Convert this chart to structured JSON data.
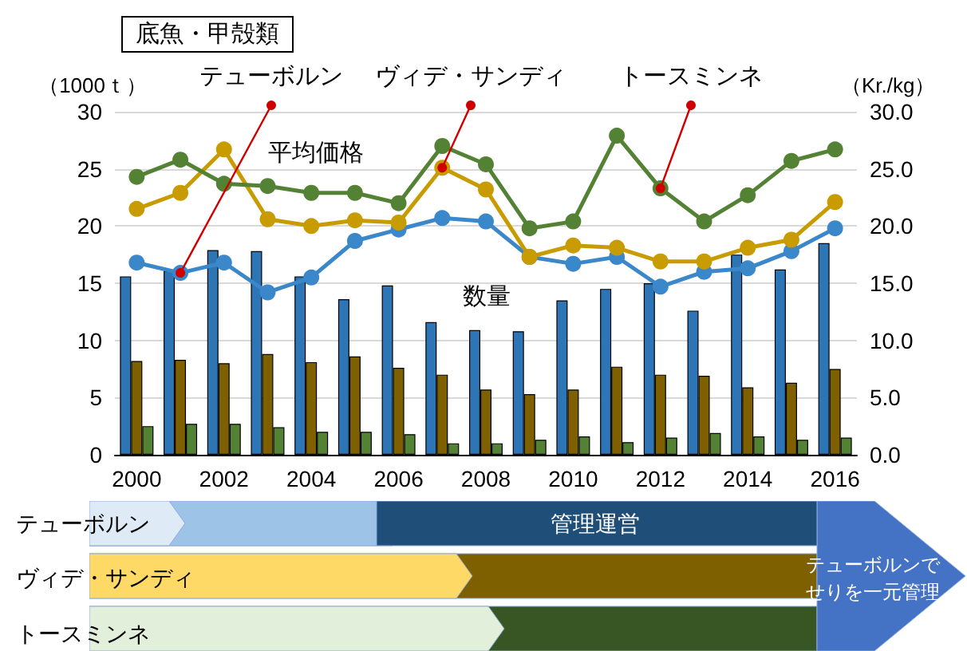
{
  "chart_data": {
    "type": "bar",
    "title": "底魚・甲殻類",
    "ylabel": "（1000ｔ）",
    "y2label": "（Kr./kg）",
    "x": [
      2000,
      2001,
      2002,
      2003,
      2004,
      2005,
      2006,
      2007,
      2008,
      2009,
      2010,
      2011,
      2012,
      2013,
      2014,
      2015,
      2016
    ],
    "xlim": [
      1999.5,
      2016.5
    ],
    "xticks": [
      2000,
      2002,
      2004,
      2006,
      2008,
      2010,
      2012,
      2014,
      2016
    ],
    "ylim": [
      0,
      30
    ],
    "yticks": [
      0,
      5,
      10,
      15,
      20,
      25,
      30
    ],
    "y2lim": [
      0,
      30
    ],
    "y2ticks": [
      {
        "value": 0,
        "label": "0.0"
      },
      {
        "value": 5,
        "label": "5.0"
      },
      {
        "value": 10,
        "label": "10.0"
      },
      {
        "value": 15,
        "label": "15.0"
      },
      {
        "value": 20,
        "label": "20.0"
      },
      {
        "value": 25,
        "label": "25.0"
      },
      {
        "value": 30,
        "label": "30.0"
      }
    ],
    "grid": "y",
    "marker": "circle",
    "series": [
      {
        "color": "#2e75b6",
        "values": [
          15.6,
          16.1,
          17.9,
          17.8,
          15.6,
          13.6,
          14.8,
          11.6,
          10.9,
          10.8,
          13.5,
          14.5,
          15.0,
          12.6,
          17.5,
          16.2,
          18.5
        ]
      },
      {
        "color": "#7f6000",
        "values": [
          8.2,
          8.3,
          8.0,
          8.8,
          8.1,
          8.6,
          7.6,
          7.0,
          5.7,
          5.3,
          5.7,
          7.7,
          7.0,
          6.9,
          5.9,
          6.3,
          7.5
        ]
      },
      {
        "color": "#548235",
        "values": [
          2.5,
          2.7,
          2.7,
          2.4,
          2.0,
          2.0,
          1.8,
          1.0,
          1.0,
          1.3,
          1.6,
          1.1,
          1.5,
          1.9,
          1.6,
          1.3,
          1.5
        ]
      },
      {
        "type": "line",
        "axis": "y2",
        "color": "#3a87c9",
        "values": [
          16.8,
          15.9,
          16.8,
          14.2,
          15.5,
          18.7,
          19.7,
          20.7,
          20.4,
          17.3,
          16.7,
          17.3,
          14.7,
          16.0,
          16.3,
          17.8,
          19.8
        ]
      },
      {
        "type": "line",
        "axis": "y2",
        "color": "#c89b00",
        "values": [
          21.5,
          22.9,
          26.7,
          20.6,
          20.0,
          20.5,
          20.3,
          25.1,
          23.2,
          17.3,
          18.3,
          18.1,
          16.9,
          16.9,
          18.1,
          18.8,
          22.1
        ]
      },
      {
        "type": "line",
        "axis": "y2",
        "color": "#548235",
        "values": [
          24.3,
          25.8,
          23.7,
          23.5,
          22.9,
          22.9,
          22.0,
          27.0,
          25.4,
          19.8,
          20.4,
          27.9,
          23.3,
          20.4,
          22.7,
          25.7,
          26.7
        ]
      }
    ],
    "annotations": [
      "平均価格",
      "数量",
      {
        "text": "テューボルン",
        "x": 2001,
        "y": 15.9
      },
      {
        "text": "ヴィデ・サンディ",
        "x": 2007,
        "y": 25.1
      },
      {
        "text": "トースミンネ",
        "x": 2012,
        "y": 23.3
      },
      "テューボルン",
      "ヴィデ・サンディ",
      "トースミンネ",
      "管理運営",
      "テューボルンでせりを一元管理"
    ]
  }
}
